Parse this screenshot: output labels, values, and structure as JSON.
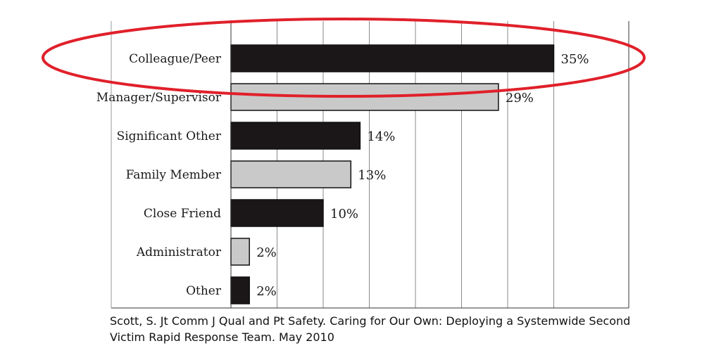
{
  "chart_data": {
    "type": "bar",
    "orientation": "horizontal",
    "categories": [
      "Colleague/Peer",
      "Manager/Supervisor",
      "Significant Other",
      "Family Member",
      "Close Friend",
      "Administrator",
      "Other"
    ],
    "values": [
      35,
      29,
      14,
      13,
      10,
      2,
      2
    ],
    "value_labels": [
      "35%",
      "29%",
      "14%",
      "13%",
      "10%",
      "2%",
      "2%"
    ],
    "xlim": [
      0,
      40
    ],
    "grid": true,
    "colors": {
      "dark_bar": "#1b1719",
      "light_bar": "#c9c9c9",
      "highlight_ellipse": "#e0202a",
      "gridline": "#8a8a8a"
    },
    "highlight": "Colleague/Peer"
  },
  "caption": {
    "line1": "Scott, S. Jt Comm J Qual and Pt Safety. Caring for Our Own: Deploying a Systemwide Second",
    "line2": "Victim Rapid Response Team. May 2010"
  }
}
